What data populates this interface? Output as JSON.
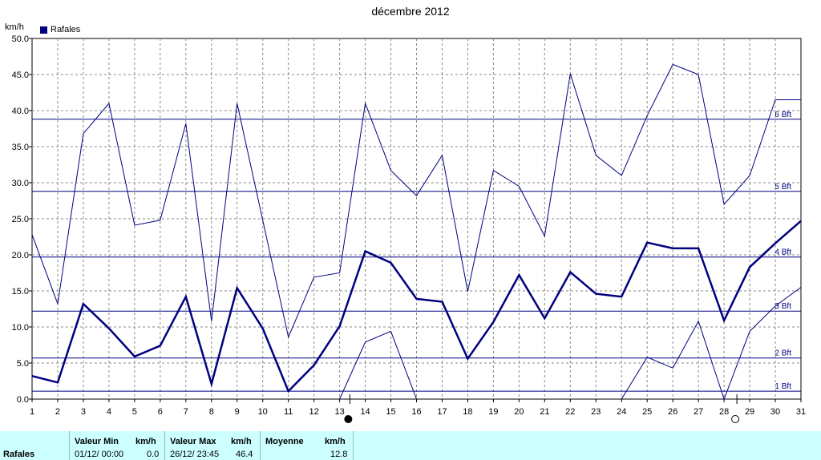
{
  "title": "décembre 2012",
  "y_unit": "km/h",
  "legend": {
    "label": "Rafales",
    "color": "#000080"
  },
  "chart_data": {
    "type": "line",
    "title": "décembre 2012",
    "ylabel": "km/h",
    "xlabel": "",
    "x": [
      1,
      2,
      3,
      4,
      5,
      6,
      7,
      8,
      9,
      10,
      11,
      12,
      13,
      14,
      15,
      16,
      17,
      18,
      19,
      20,
      21,
      22,
      23,
      24,
      25,
      26,
      27,
      28,
      29,
      30,
      31
    ],
    "xlim": [
      1,
      31
    ],
    "ylim": [
      0,
      50
    ],
    "y_ticks": [
      "0.0",
      "5.0",
      "10.0",
      "15.0",
      "20.0",
      "25.0",
      "30.0",
      "35.0",
      "40.0",
      "45.0",
      "50.0"
    ],
    "grid": true,
    "series": [
      {
        "name": "Rafales",
        "values": [
          3.2,
          2.3,
          13.2,
          9.8,
          5.9,
          7.4,
          14.2,
          2.1,
          15.4,
          9.8,
          1.1,
          4.7,
          10.1,
          20.5,
          18.9,
          13.9,
          13.5,
          5.6,
          10.7,
          17.2,
          11.2,
          17.6,
          14.6,
          14.2,
          21.7,
          20.9,
          20.9,
          10.9,
          18.3,
          21.6,
          24.7
        ]
      },
      {
        "name": "",
        "values": [
          22.8,
          13.2,
          36.8,
          41.0,
          24.1,
          24.8,
          38.2,
          10.8,
          41.0,
          24.8,
          8.6,
          16.9,
          17.5,
          41.0,
          31.7,
          28.2,
          33.8,
          14.9,
          31.7,
          29.5,
          22.6,
          45.1,
          33.8,
          31.0,
          39.3,
          46.4,
          45.0,
          27.0,
          31.0,
          41.5,
          41.5
        ]
      },
      {
        "name": "",
        "values": [
          null,
          null,
          null,
          null,
          null,
          null,
          null,
          null,
          null,
          null,
          null,
          null,
          0.0,
          7.9,
          9.4,
          0.0,
          null,
          null,
          null,
          null,
          null,
          null,
          null,
          0.0,
          5.8,
          4.3,
          10.8,
          0.0,
          9.4,
          12.9,
          15.5
        ]
      }
    ],
    "reference_lines": [
      {
        "label": "1 Bft",
        "value": 1.1
      },
      {
        "label": "2 Bft",
        "value": 5.7
      },
      {
        "label": "3 Bft",
        "value": 12.2
      },
      {
        "label": "4 Bft",
        "value": 19.7
      },
      {
        "label": "5 Bft",
        "value": 28.8
      },
      {
        "label": "6 Bft",
        "value": 38.8
      }
    ],
    "moon_markers": [
      {
        "day": 13.4,
        "phase": "new"
      },
      {
        "day": 28.5,
        "phase": "full"
      }
    ]
  },
  "stats": {
    "row_label": "Rafales",
    "min": {
      "label": "Valeur Min",
      "unit": "km/h",
      "date": "01/12/  00:00",
      "value": "0.0"
    },
    "max": {
      "label": "Valeur Max",
      "unit": "km/h",
      "date": "26/12/  23:45",
      "value": "46.4"
    },
    "avg": {
      "label": "Moyenne",
      "unit": "km/h",
      "value": "12.8"
    }
  }
}
